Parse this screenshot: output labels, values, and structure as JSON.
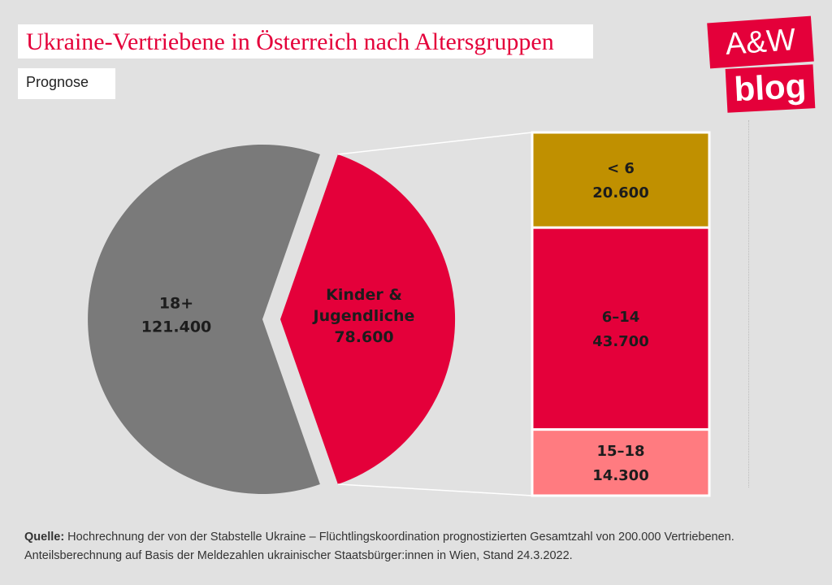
{
  "header": {
    "title": "Ukraine-Vertriebene in Österreich nach Altersgruppen",
    "subtitle": "Prognose"
  },
  "logo": {
    "line1": "A&W",
    "line2": "blog"
  },
  "chart_data": [
    {
      "type": "pie",
      "slices": [
        {
          "label_lines": [
            "18+",
            "121.400"
          ],
          "label": "18+",
          "value": 121400,
          "color": "#7a7a7a"
        },
        {
          "label_lines": [
            "Kinder &",
            "Jugendliche",
            "78.600"
          ],
          "label": "Kinder & Jugendliche",
          "value": 78600,
          "color": "#e4003a"
        }
      ]
    },
    {
      "type": "bar",
      "stacked": true,
      "segments": [
        {
          "label_lines": [
            "< 6",
            "20.600"
          ],
          "label": "< 6",
          "value": 20600,
          "color": "#c09000"
        },
        {
          "label_lines": [
            "6–14",
            "43.700"
          ],
          "label": "6–14",
          "value": 43700,
          "color": "#e4003a"
        },
        {
          "label_lines": [
            "15–18",
            "14.300"
          ],
          "label": "15–18",
          "value": 14300,
          "color": "#ff7b80"
        }
      ]
    }
  ],
  "source": {
    "prefix": "Quelle:",
    "text": " Hochrechnung der von der Stabstelle Ukraine – Flüchtlingskoordination prognostizierten Gesamtzahl von 200.000 Vertriebenen. Anteilsberechnung auf Basis der Meldezahlen ukrainischer Staatsbürger:innen in Wien, Stand 24.3.2022."
  }
}
